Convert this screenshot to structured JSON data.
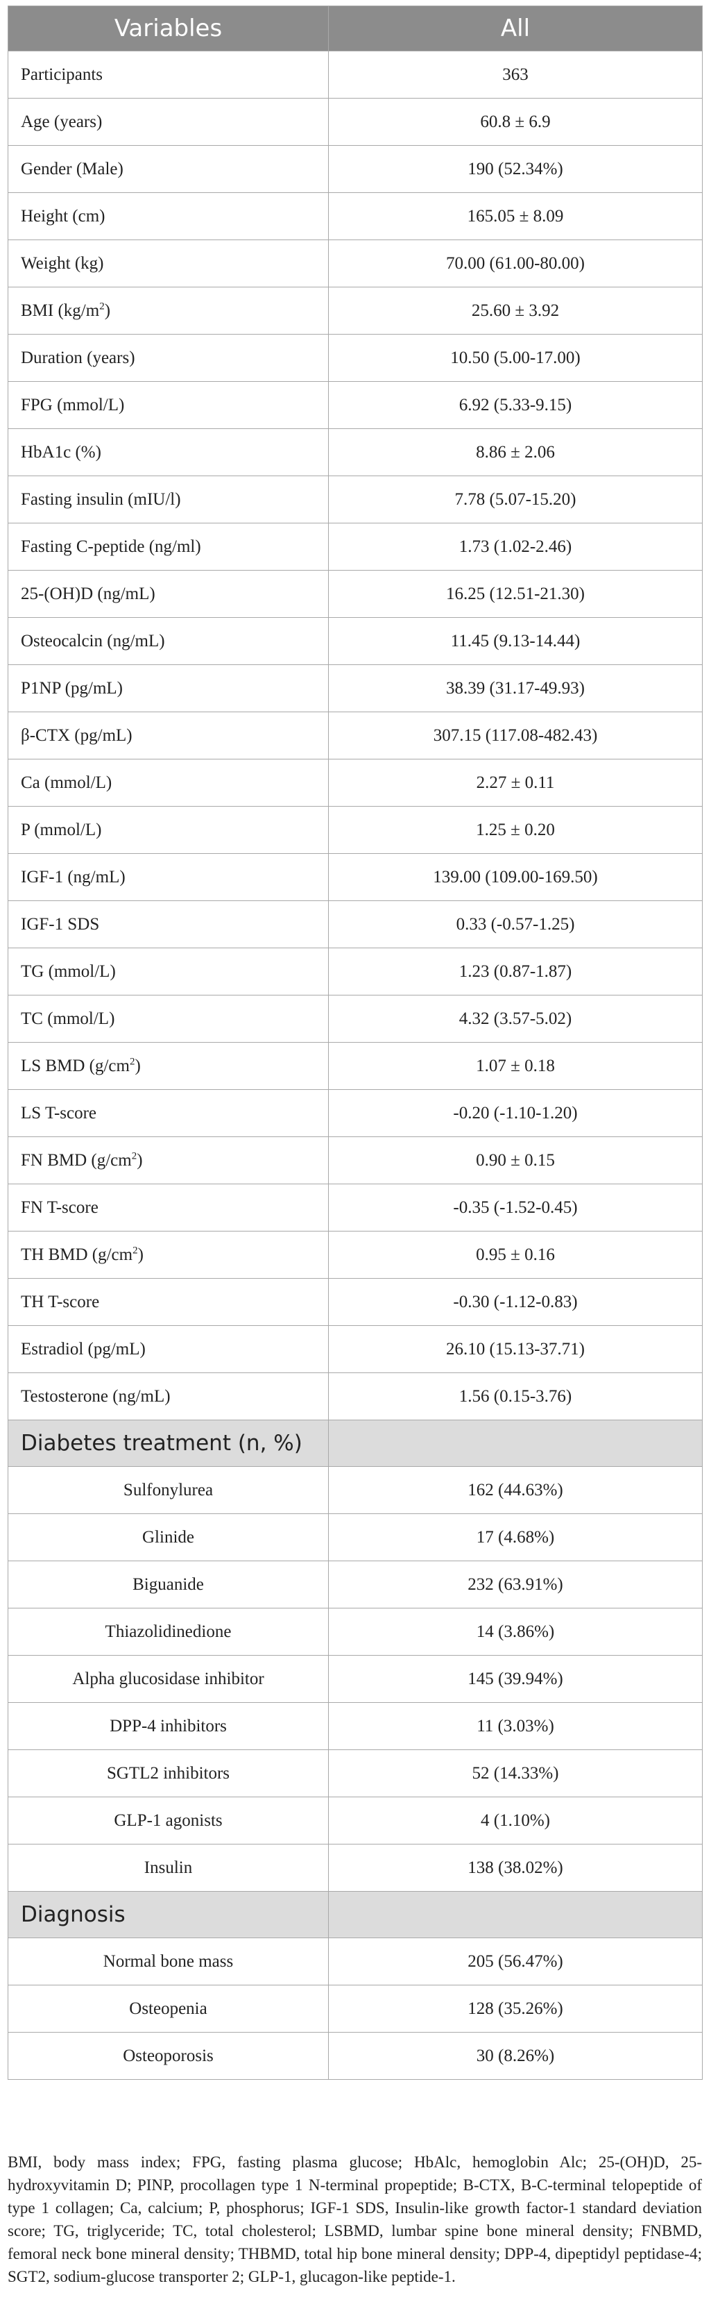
{
  "header": {
    "col1": "Variables",
    "col2": "All"
  },
  "rows": [
    {
      "label": "Participants",
      "value": "363"
    },
    {
      "label": "Age (years)",
      "value": "60.8 ± 6.9"
    },
    {
      "label": "Gender (Male)",
      "value": "190 (52.34%)"
    },
    {
      "label": "Height (cm)",
      "value": "165.05 ± 8.09"
    },
    {
      "label": "Weight (kg)",
      "value": "70.00 (61.00-80.00)"
    },
    {
      "label": "BMI (kg/m",
      "sup": "2",
      "suffix": ")",
      "value": "25.60 ± 3.92"
    },
    {
      "label": "Duration (years)",
      "value": "10.50 (5.00-17.00)"
    },
    {
      "label": "FPG (mmol/L)",
      "value": "6.92 (5.33-9.15)"
    },
    {
      "label": "HbA1c (%)",
      "value": "8.86 ± 2.06"
    },
    {
      "label": "Fasting insulin (mIU/l)",
      "value": "7.78 (5.07-15.20)"
    },
    {
      "label": "Fasting C-peptide (ng/ml)",
      "value": "1.73 (1.02-2.46)"
    },
    {
      "label": "25-(OH)D (ng/mL)",
      "value": "16.25 (12.51-21.30)"
    },
    {
      "label": "Osteocalcin (ng/mL)",
      "value": "11.45 (9.13-14.44)"
    },
    {
      "label": "P1NP (pg/mL)",
      "value": "38.39 (31.17-49.93)"
    },
    {
      "label": "β-CTX (pg/mL)",
      "value": "307.15 (117.08-482.43)"
    },
    {
      "label": "Ca (mmol/L)",
      "value": "2.27 ± 0.11"
    },
    {
      "label": "P (mmol/L)",
      "value": "1.25 ± 0.20"
    },
    {
      "label": "IGF-1 (ng/mL)",
      "value": "139.00 (109.00-169.50)"
    },
    {
      "label": "IGF-1 SDS",
      "value": "0.33 (-0.57-1.25)"
    },
    {
      "label": "TG (mmol/L)",
      "value": "1.23 (0.87-1.87)"
    },
    {
      "label": "TC (mmol/L)",
      "value": "4.32 (3.57-5.02)"
    },
    {
      "label": "LS BMD (g/cm",
      "sup": "2",
      "suffix": ")",
      "value": "1.07 ± 0.18"
    },
    {
      "label": "LS T-score",
      "value": "-0.20 (-1.10-1.20)"
    },
    {
      "label": "FN BMD (g/cm",
      "sup": "2",
      "suffix": ")",
      "value": "0.90 ± 0.15"
    },
    {
      "label": "FN T-score",
      "value": "-0.35 (-1.52-0.45)"
    },
    {
      "label": "TH BMD (g/cm",
      "sup": "2",
      "suffix": ")",
      "value": "0.95 ± 0.16"
    },
    {
      "label": "TH T-score",
      "value": "-0.30 (-1.12-0.83)"
    },
    {
      "label": "Estradiol (pg/mL)",
      "value": "26.10 (15.13-37.71)"
    },
    {
      "label": "Testosterone (ng/mL)",
      "value": "1.56 (0.15-3.76)"
    }
  ],
  "treatment": {
    "title": "Diabetes treatment (n, %)",
    "rows": [
      {
        "label": "Sulfonylurea",
        "value": "162 (44.63%)"
      },
      {
        "label": "Glinide",
        "value": "17 (4.68%)"
      },
      {
        "label": "Biguanide",
        "value": "232 (63.91%)"
      },
      {
        "label": "Thiazolidinedione",
        "value": "14 (3.86%)"
      },
      {
        "label": "Alpha glucosidase inhibitor",
        "value": "145 (39.94%)"
      },
      {
        "label": "DPP-4 inhibitors",
        "value": "11 (3.03%)"
      },
      {
        "label": "SGTL2 inhibitors",
        "value": "52 (14.33%)"
      },
      {
        "label": "GLP-1 agonists",
        "value": "4 (1.10%)"
      },
      {
        "label": "Insulin",
        "value": "138 (38.02%)"
      }
    ]
  },
  "diagnosis": {
    "title": "Diagnosis",
    "rows": [
      {
        "label": "Normal bone mass",
        "value": "205 (56.47%)"
      },
      {
        "label": "Osteopenia",
        "value": "128 (35.26%)"
      },
      {
        "label": "Osteoporosis",
        "value": "30 (8.26%)"
      }
    ]
  },
  "footnote": "BMI, body mass index; FPG, fasting plasma glucose; HbAlc, hemoglobin Alc; 25-(OH)D, 25-hydroxyvitamin D; PINP, procollagen type 1 N-terminal propeptide; B-CTX, B-C-terminal telopeptide of type 1 collagen; Ca, calcium; P, phosphorus; IGF-1 SDS, Insulin-like growth factor-1 standard deviation score; TG, triglyceride; TC, total cholesterol; LSBMD, lumbar spine bone mineral density; FNBMD, femoral neck bone mineral density; THBMD, total hip bone mineral density; DPP-4, dipeptidyl peptidase-4; SGT2, sodium-glucose transporter 2; GLP-1, glucagon-like peptide-1."
}
